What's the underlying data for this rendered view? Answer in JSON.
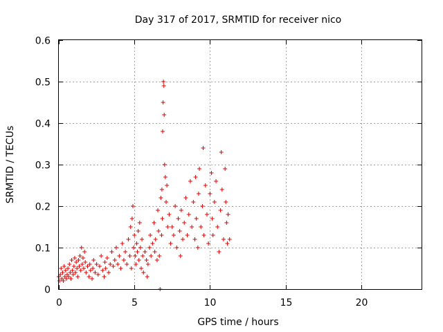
{
  "chart_data": {
    "type": "scatter",
    "title": "Day 317 of 2017, SRMTID for receiver nico",
    "xlabel": "GPS time / hours",
    "ylabel": "SRMTID / TECUs",
    "xlim": [
      0,
      24
    ],
    "ylim": [
      0,
      0.6
    ],
    "xticks": [
      0,
      5,
      10,
      15,
      20
    ],
    "xtick_labels": [
      "0",
      "5",
      "10",
      "15",
      "20"
    ],
    "yticks": [
      0,
      0.1,
      0.2,
      0.3,
      0.4,
      0.5,
      0.6
    ],
    "ytick_labels": [
      "0",
      "0.1",
      "0.2",
      "0.3",
      "0.4",
      "0.5",
      "0.6"
    ],
    "grid": true,
    "marker": "+",
    "color": "#e00000",
    "series": [
      {
        "name": "SRMTID",
        "points": [
          [
            0.0,
            0.03
          ],
          [
            0.05,
            0.02
          ],
          [
            0.1,
            0.035
          ],
          [
            0.15,
            0.05
          ],
          [
            0.2,
            0.025
          ],
          [
            0.25,
            0.04
          ],
          [
            0.3,
            0.02
          ],
          [
            0.35,
            0.055
          ],
          [
            0.4,
            0.03
          ],
          [
            0.45,
            0.045
          ],
          [
            0.5,
            0.025
          ],
          [
            0.55,
            0.035
          ],
          [
            0.6,
            0.05
          ],
          [
            0.65,
            0.03
          ],
          [
            0.7,
            0.06
          ],
          [
            0.75,
            0.04
          ],
          [
            0.8,
            0.025
          ],
          [
            0.85,
            0.07
          ],
          [
            0.9,
            0.045
          ],
          [
            0.95,
            0.035
          ],
          [
            1.0,
            0.055
          ],
          [
            1.05,
            0.075
          ],
          [
            1.1,
            0.04
          ],
          [
            1.15,
            0.065
          ],
          [
            1.2,
            0.05
          ],
          [
            1.25,
            0.03
          ],
          [
            1.3,
            0.07
          ],
          [
            1.35,
            0.055
          ],
          [
            1.4,
            0.08
          ],
          [
            1.45,
            0.045
          ],
          [
            1.5,
            0.1
          ],
          [
            1.55,
            0.06
          ],
          [
            1.6,
            0.075
          ],
          [
            1.65,
            0.05
          ],
          [
            1.7,
            0.09
          ],
          [
            1.75,
            0.065
          ],
          [
            1.8,
            0.04
          ],
          [
            1.9,
            0.055
          ],
          [
            2.0,
            0.03
          ],
          [
            2.05,
            0.06
          ],
          [
            2.1,
            0.045
          ],
          [
            2.2,
            0.025
          ],
          [
            2.25,
            0.05
          ],
          [
            2.3,
            0.07
          ],
          [
            2.4,
            0.04
          ],
          [
            2.5,
            0.06
          ],
          [
            2.6,
            0.035
          ],
          [
            2.7,
            0.055
          ],
          [
            2.8,
            0.08
          ],
          [
            2.9,
            0.045
          ],
          [
            3.0,
            0.03
          ],
          [
            3.05,
            0.065
          ],
          [
            3.1,
            0.05
          ],
          [
            3.2,
            0.075
          ],
          [
            3.3,
            0.04
          ],
          [
            3.4,
            0.06
          ],
          [
            3.5,
            0.09
          ],
          [
            3.6,
            0.055
          ],
          [
            3.7,
            0.07
          ],
          [
            3.8,
            0.1
          ],
          [
            3.9,
            0.06
          ],
          [
            4.0,
            0.08
          ],
          [
            4.1,
            0.05
          ],
          [
            4.2,
            0.11
          ],
          [
            4.3,
            0.07
          ],
          [
            4.4,
            0.09
          ],
          [
            4.5,
            0.06
          ],
          [
            4.6,
            0.12
          ],
          [
            4.7,
            0.08
          ],
          [
            4.75,
            0.15
          ],
          [
            4.8,
            0.05
          ],
          [
            4.85,
            0.17
          ],
          [
            4.9,
            0.2
          ],
          [
            4.95,
            0.1
          ],
          [
            5.0,
            0.13
          ],
          [
            5.05,
            0.08
          ],
          [
            5.1,
            0.06
          ],
          [
            5.15,
            0.11
          ],
          [
            5.2,
            0.09
          ],
          [
            5.25,
            0.14
          ],
          [
            5.3,
            0.07
          ],
          [
            5.35,
            0.16
          ],
          [
            5.4,
            0.1
          ],
          [
            5.45,
            0.05
          ],
          [
            5.5,
            0.12
          ],
          [
            5.55,
            0.08
          ],
          [
            5.6,
            0.04
          ],
          [
            5.7,
            0.09
          ],
          [
            5.8,
            0.07
          ],
          [
            5.85,
            0.03
          ],
          [
            5.9,
            0.06
          ],
          [
            6.0,
            0.1
          ],
          [
            6.05,
            0.13
          ],
          [
            6.1,
            0.08
          ],
          [
            6.2,
            0.11
          ],
          [
            6.3,
            0.16
          ],
          [
            6.35,
            0.09
          ],
          [
            6.4,
            0.12
          ],
          [
            6.5,
            0.07
          ],
          [
            6.55,
            0.19
          ],
          [
            6.6,
            0.14
          ],
          [
            6.65,
            0.08
          ],
          [
            6.7,
            0.0
          ],
          [
            6.75,
            0.22
          ],
          [
            6.8,
            0.13
          ],
          [
            6.82,
            0.24
          ],
          [
            6.85,
            0.17
          ],
          [
            6.87,
            0.38
          ],
          [
            6.9,
            0.45
          ],
          [
            6.92,
            0.5
          ],
          [
            6.95,
            0.49
          ],
          [
            6.97,
            0.42
          ],
          [
            7.0,
            0.3
          ],
          [
            7.05,
            0.27
          ],
          [
            7.1,
            0.21
          ],
          [
            7.15,
            0.25
          ],
          [
            7.2,
            0.15
          ],
          [
            7.3,
            0.18
          ],
          [
            7.4,
            0.11
          ],
          [
            7.5,
            0.15
          ],
          [
            7.6,
            0.13
          ],
          [
            7.7,
            0.2
          ],
          [
            7.8,
            0.1
          ],
          [
            7.9,
            0.17
          ],
          [
            8.0,
            0.14
          ],
          [
            8.05,
            0.08
          ],
          [
            8.1,
            0.19
          ],
          [
            8.2,
            0.12
          ],
          [
            8.3,
            0.16
          ],
          [
            8.4,
            0.22
          ],
          [
            8.5,
            0.13
          ],
          [
            8.6,
            0.18
          ],
          [
            8.7,
            0.26
          ],
          [
            8.8,
            0.15
          ],
          [
            8.9,
            0.21
          ],
          [
            9.0,
            0.12
          ],
          [
            9.05,
            0.27
          ],
          [
            9.1,
            0.17
          ],
          [
            9.2,
            0.1
          ],
          [
            9.25,
            0.23
          ],
          [
            9.3,
            0.29
          ],
          [
            9.4,
            0.15
          ],
          [
            9.5,
            0.2
          ],
          [
            9.55,
            0.34
          ],
          [
            9.6,
            0.13
          ],
          [
            9.7,
            0.25
          ],
          [
            9.8,
            0.18
          ],
          [
            9.9,
            0.11
          ],
          [
            10.0,
            0.23
          ],
          [
            10.1,
            0.28
          ],
          [
            10.15,
            0.17
          ],
          [
            10.2,
            0.13
          ],
          [
            10.3,
            0.21
          ],
          [
            10.4,
            0.26
          ],
          [
            10.5,
            0.15
          ],
          [
            10.6,
            0.09
          ],
          [
            10.7,
            0.19
          ],
          [
            10.75,
            0.33
          ],
          [
            10.8,
            0.24
          ],
          [
            10.9,
            0.12
          ],
          [
            11.0,
            0.29
          ],
          [
            11.05,
            0.21
          ],
          [
            11.1,
            0.16
          ],
          [
            11.15,
            0.11
          ],
          [
            11.2,
            0.18
          ],
          [
            11.3,
            0.12
          ]
        ]
      }
    ]
  }
}
